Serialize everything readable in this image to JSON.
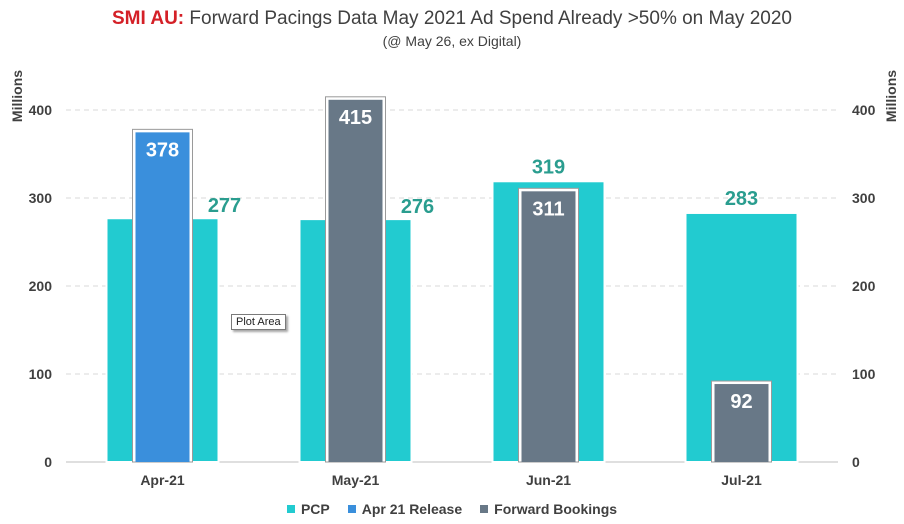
{
  "chart_data": {
    "type": "bar",
    "title_prefix": "SMI AU:",
    "title_rest": "Forward Pacings Data May 2021 Ad Spend Already >50% on May 2020",
    "subtitle": "(@ May 26, ex Digital)",
    "ylabel_left": "Millions",
    "ylabel_right": "Millions",
    "ylim": [
      0,
      400
    ],
    "yticks": [
      0,
      100,
      200,
      300,
      400
    ],
    "categories": [
      "Apr-21",
      "May-21",
      "Jun-21",
      "Jul-21"
    ],
    "series": [
      {
        "name": "PCP",
        "color": "#22cbd0",
        "label_color": "#2a9d8f",
        "values": [
          277,
          276,
          319,
          283
        ]
      },
      {
        "name": "Apr 21 Release",
        "color": "#3a8fdc",
        "label_color": "#ffffff",
        "values": [
          378,
          null,
          null,
          null
        ]
      },
      {
        "name": "Forward Bookings",
        "color": "#687887",
        "label_color": "#ffffff",
        "values": [
          null,
          415,
          311,
          92
        ]
      }
    ],
    "grid": true,
    "legend": "bottom"
  },
  "tooltip": {
    "text": "Plot Area"
  }
}
